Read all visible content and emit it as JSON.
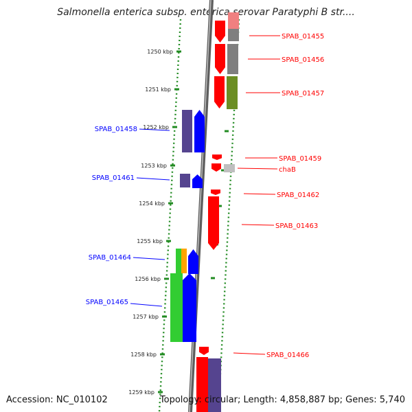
{
  "title": "Salmonella enterica subsp. enterica serovar Paratyphi B str....",
  "accession_text": "Accession: NC_010102",
  "summary_text": "Topology: circular; Length: 4,858,887 bp; Genes: 5,740",
  "position_labels": [
    "1250 kbp",
    "1251 kbp",
    "1252 kbp",
    "1253 kbp",
    "1254 kbp",
    "1255 kbp",
    "1256 kbp",
    "1257 kbp",
    "1258 kbp",
    "1259 kbp"
  ],
  "genes_forward": [
    {
      "name": "SPAB_01455",
      "color": "#ff0000"
    },
    {
      "name": "SPAB_01456",
      "color": "#ff0000"
    },
    {
      "name": "SPAB_01457",
      "color": "#ff0000"
    },
    {
      "name": "SPAB_01459",
      "color": "#ff0000"
    },
    {
      "name": "chaB",
      "color": "#ff0000"
    },
    {
      "name": "SPAB_01462",
      "color": "#ff0000"
    },
    {
      "name": "SPAB_01463",
      "color": "#ff0000"
    },
    {
      "name": "SPAB_01466",
      "color": "#ff0000"
    }
  ],
  "genes_reverse": [
    {
      "name": "SPAB_01458",
      "color": "#0000ff"
    },
    {
      "name": "SPAB_01461",
      "color": "#0000ff"
    },
    {
      "name": "SPAB_01464",
      "color": "#0000ff"
    },
    {
      "name": "SPAB_01465",
      "color": "#0000ff"
    }
  ],
  "colors": {
    "forward_strand": "#ff0000",
    "reverse_strand": "#0000ff",
    "backbone": "#808080",
    "tick_marks": "#228b22",
    "cog_purple": "#55448f",
    "cog_olive": "#6b8e23",
    "cog_grey": "#7f7f7f",
    "cog_green": "#32cd32",
    "cog_orange": "#ffa500"
  }
}
